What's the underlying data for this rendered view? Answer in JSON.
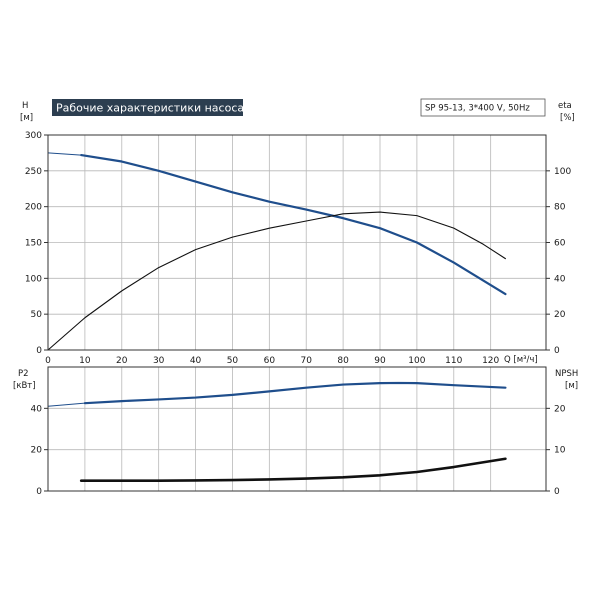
{
  "chart_data": [
    {
      "type": "line",
      "title": "Рабочие характеристики насоса",
      "subtitle": "SP 95-13, 3*400 V, 50Hz",
      "xlabel": "Q [м³/ч]",
      "xlim": [
        0,
        135
      ],
      "x_ticks": [
        "0",
        "10",
        "20",
        "30",
        "40",
        "50",
        "60",
        "70",
        "80",
        "90",
        "100",
        "110",
        "120"
      ],
      "ylabel_left": "H",
      "ylabel_left_unit": "[м]",
      "ylim_left": [
        0,
        300
      ],
      "y_ticks_left": [
        "0",
        "50",
        "100",
        "150",
        "200",
        "250",
        "300"
      ],
      "ylabel_right": "eta",
      "ylabel_right_unit": "[%]",
      "ylim_right": [
        0,
        120
      ],
      "y_ticks_right": [
        "0",
        "20",
        "40",
        "60",
        "80",
        "100"
      ],
      "grid": true,
      "series": [
        {
          "color": "#1f4e8c",
          "axis": "left",
          "x": [
            0,
            9,
            20,
            30,
            40,
            50,
            60,
            70,
            80,
            90,
            100,
            110,
            124
          ],
          "y": [
            275,
            272,
            263,
            250,
            235,
            220,
            207,
            196,
            184,
            170,
            150,
            122,
            78
          ],
          "partial_start": true
        },
        {
          "color": "#111111",
          "axis": "right",
          "x": [
            0,
            10,
            20,
            30,
            40,
            50,
            60,
            70,
            80,
            90,
            100,
            110,
            118,
            124
          ],
          "y": [
            0,
            18,
            33,
            46,
            56,
            63,
            68,
            72,
            76,
            77,
            75,
            68,
            59,
            51
          ]
        }
      ]
    },
    {
      "type": "line",
      "xlim": [
        0,
        135
      ],
      "ylabel_left": "P2",
      "ylabel_left_unit": "[кВт]",
      "ylim_left": [
        0,
        60
      ],
      "y_ticks_left": [
        "0",
        "20",
        "40"
      ],
      "ylabel_right": "NPSH",
      "ylabel_right_unit": "[м]",
      "ylim_right": [
        0,
        30
      ],
      "y_ticks_right": [
        "0",
        "10",
        "20"
      ],
      "grid": true,
      "series": [
        {
          "color": "#1f4e8c",
          "axis": "left",
          "x": [
            0,
            10,
            20,
            30,
            40,
            50,
            60,
            70,
            80,
            90,
            95,
            100,
            110,
            124
          ],
          "y": [
            41,
            42.5,
            43.5,
            44.3,
            45.2,
            46.5,
            48.2,
            50,
            51.5,
            52.2,
            52.3,
            52.2,
            51.2,
            50
          ],
          "partial_start": true
        },
        {
          "color": "#111111",
          "axis": "right",
          "x": [
            9,
            20,
            30,
            40,
            50,
            60,
            70,
            80,
            90,
            100,
            110,
            124
          ],
          "y": [
            2.5,
            2.5,
            2.5,
            2.55,
            2.65,
            2.8,
            3.0,
            3.3,
            3.8,
            4.6,
            5.8,
            7.8
          ]
        }
      ]
    }
  ]
}
